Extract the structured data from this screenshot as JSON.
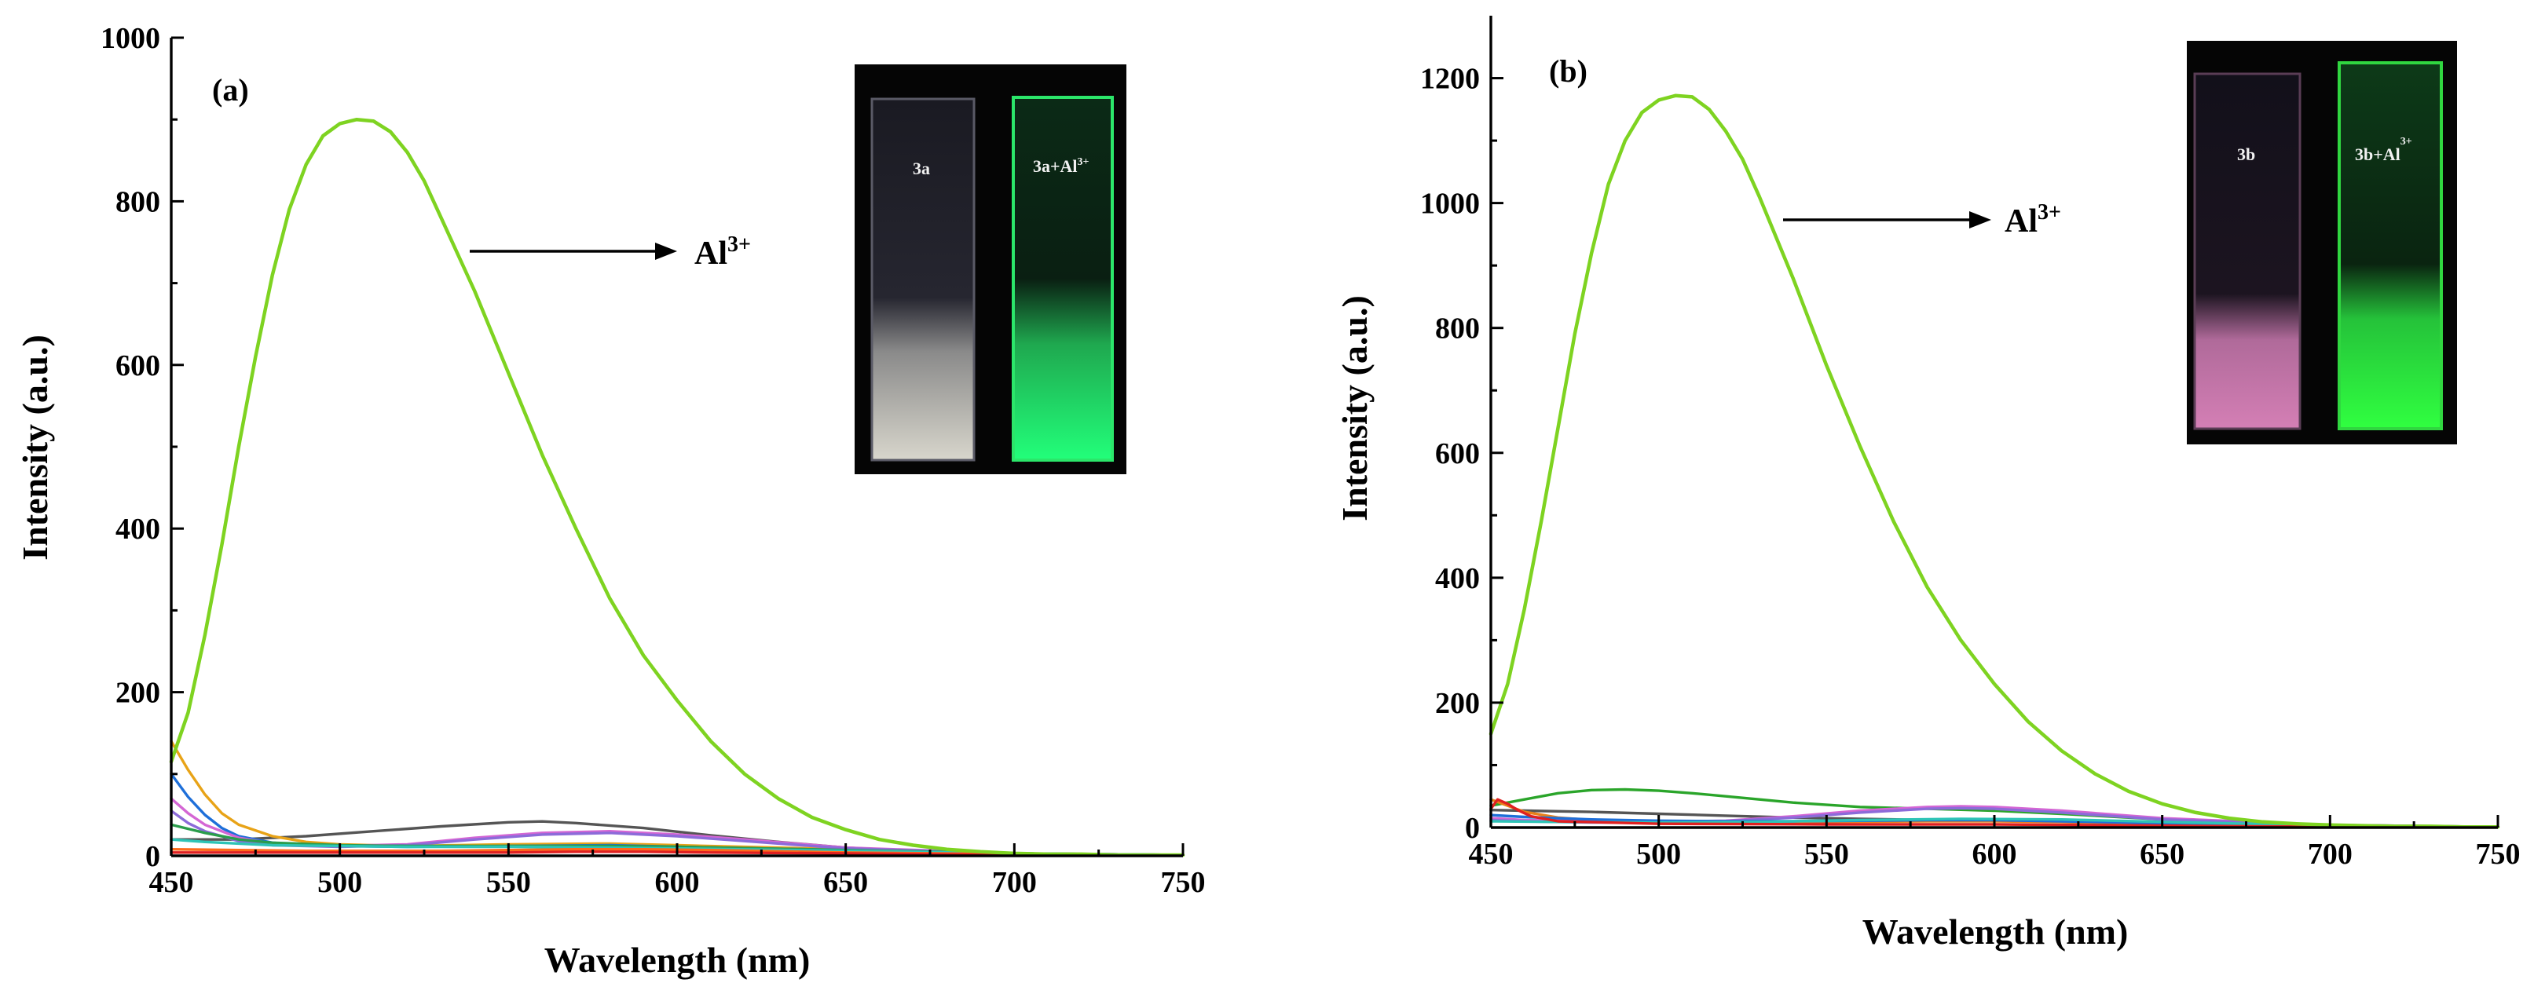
{
  "chart_data": [
    {
      "type": "line",
      "panel_label": "(a)",
      "xlabel": "Wavelength (nm)",
      "ylabel": "Intensity (a.u.)",
      "xlim": [
        450,
        750
      ],
      "ylim": [
        0,
        1000
      ],
      "xticks": [
        450,
        500,
        550,
        600,
        650,
        700,
        750
      ],
      "yticks": [
        0,
        200,
        400,
        600,
        800,
        1000
      ],
      "annotation": {
        "text": "Al",
        "sup": "3+"
      },
      "inset": {
        "left_label": "3a",
        "right_label": "3a+Al",
        "right_sup": "3+"
      },
      "series": [
        {
          "name": "Al3+",
          "color": "#7ed321",
          "x": [
            450,
            455,
            460,
            465,
            470,
            475,
            480,
            485,
            490,
            495,
            500,
            505,
            510,
            515,
            520,
            525,
            530,
            540,
            550,
            560,
            570,
            580,
            590,
            600,
            610,
            620,
            630,
            640,
            650,
            660,
            670,
            680,
            690,
            700,
            710,
            720,
            730,
            740,
            750
          ],
          "y": [
            115,
            175,
            270,
            380,
            500,
            610,
            710,
            790,
            845,
            880,
            895,
            900,
            898,
            885,
            860,
            825,
            780,
            690,
            590,
            490,
            400,
            315,
            245,
            190,
            140,
            100,
            70,
            47,
            32,
            20,
            13,
            8,
            5,
            3,
            2,
            2,
            1,
            1,
            1
          ]
        },
        {
          "name": "dark-gray",
          "color": "#555555",
          "x": [
            450,
            470,
            490,
            510,
            530,
            550,
            560,
            570,
            590,
            610,
            630,
            650,
            670,
            700,
            750
          ],
          "y": [
            20,
            20,
            24,
            30,
            36,
            41,
            42,
            40,
            34,
            25,
            17,
            10,
            6,
            3,
            1
          ]
        },
        {
          "name": "orange",
          "color": "#e8a317",
          "x": [
            450,
            455,
            460,
            465,
            470,
            480,
            490,
            500,
            520,
            550,
            580,
            600,
            650,
            700,
            750
          ],
          "y": [
            140,
            105,
            75,
            52,
            38,
            24,
            17,
            14,
            12,
            14,
            15,
            13,
            8,
            3,
            1
          ]
        },
        {
          "name": "blue",
          "color": "#1e6fd9",
          "x": [
            450,
            455,
            460,
            465,
            470,
            480,
            490,
            500,
            520,
            550,
            580,
            600,
            650,
            700,
            750
          ],
          "y": [
            100,
            72,
            50,
            34,
            24,
            16,
            13,
            12,
            11,
            12,
            13,
            11,
            7,
            3,
            1
          ]
        },
        {
          "name": "magenta",
          "color": "#d466d4",
          "x": [
            450,
            455,
            460,
            470,
            480,
            500,
            520,
            540,
            560,
            580,
            600,
            620,
            650,
            700,
            750
          ],
          "y": [
            70,
            52,
            38,
            22,
            15,
            12,
            14,
            22,
            28,
            30,
            26,
            20,
            10,
            3,
            1
          ]
        },
        {
          "name": "purple",
          "color": "#8c6bd9",
          "x": [
            450,
            455,
            460,
            470,
            480,
            500,
            520,
            540,
            560,
            580,
            600,
            620,
            650,
            700,
            750
          ],
          "y": [
            55,
            40,
            30,
            18,
            13,
            11,
            13,
            20,
            26,
            28,
            24,
            18,
            9,
            3,
            1
          ]
        },
        {
          "name": "green",
          "color": "#2a9d4b",
          "x": [
            450,
            460,
            470,
            480,
            500,
            520,
            550,
            580,
            600,
            650,
            700,
            750
          ],
          "y": [
            38,
            28,
            20,
            16,
            13,
            12,
            12,
            12,
            11,
            7,
            3,
            1
          ]
        },
        {
          "name": "teal",
          "color": "#2ec4b6",
          "x": [
            450,
            460,
            470,
            480,
            500,
            520,
            550,
            580,
            600,
            650,
            700,
            750
          ],
          "y": [
            20,
            17,
            15,
            13,
            12,
            11,
            11,
            10,
            9,
            6,
            3,
            1
          ]
        },
        {
          "name": "red-orange",
          "color": "#ff6b1a",
          "x": [
            450,
            470,
            490,
            510,
            530,
            550,
            570,
            590,
            610,
            650,
            700,
            750
          ],
          "y": [
            8,
            7,
            6,
            6,
            6,
            7,
            8,
            8,
            7,
            4,
            2,
            1
          ]
        },
        {
          "name": "red",
          "color": "#e02020",
          "x": [
            450,
            470,
            490,
            510,
            530,
            550,
            570,
            590,
            610,
            650,
            700,
            750
          ],
          "y": [
            4,
            4,
            4,
            4,
            4,
            4,
            5,
            5,
            4,
            3,
            1,
            1
          ]
        }
      ]
    },
    {
      "type": "line",
      "panel_label": "(b)",
      "xlabel": "Wavelength (nm)",
      "ylabel": "Intensity (a.u.)",
      "xlim": [
        450,
        750
      ],
      "ylim": [
        0,
        1300
      ],
      "xticks": [
        450,
        500,
        550,
        600,
        650,
        700,
        750
      ],
      "yticks": [
        0,
        200,
        400,
        600,
        800,
        1000,
        1200
      ],
      "annotation": {
        "text": "Al",
        "sup": "3+"
      },
      "inset": {
        "left_label": "3b",
        "right_label": "3b+Al",
        "right_sup": "3+"
      },
      "series": [
        {
          "name": "Al3+",
          "color": "#7ed321",
          "x": [
            450,
            455,
            460,
            465,
            470,
            475,
            480,
            485,
            490,
            495,
            500,
            505,
            510,
            515,
            520,
            525,
            530,
            540,
            550,
            560,
            570,
            580,
            590,
            600,
            610,
            620,
            630,
            640,
            650,
            660,
            670,
            680,
            690,
            700,
            710,
            720,
            730,
            740,
            750
          ],
          "y": [
            150,
            230,
            350,
            490,
            640,
            790,
            920,
            1030,
            1100,
            1145,
            1165,
            1172,
            1170,
            1150,
            1115,
            1070,
            1010,
            880,
            740,
            610,
            490,
            385,
            300,
            230,
            170,
            123,
            86,
            58,
            38,
            24,
            15,
            9,
            6,
            4,
            3,
            2,
            2,
            1,
            1
          ]
        },
        {
          "name": "green",
          "color": "#2aa52a",
          "x": [
            450,
            460,
            470,
            480,
            490,
            500,
            510,
            520,
            540,
            560,
            580,
            600,
            620,
            650,
            700,
            750
          ],
          "y": [
            35,
            45,
            55,
            60,
            61,
            59,
            55,
            50,
            40,
            33,
            30,
            27,
            22,
            13,
            4,
            1
          ]
        },
        {
          "name": "dark-gray",
          "color": "#555555",
          "x": [
            450,
            460,
            480,
            500,
            520,
            540,
            560,
            580,
            600,
            620,
            650,
            700,
            750
          ],
          "y": [
            28,
            27,
            25,
            22,
            19,
            16,
            14,
            12,
            11,
            9,
            6,
            3,
            1
          ]
        },
        {
          "name": "orange",
          "color": "#e8801a",
          "x": [
            450,
            455,
            460,
            470,
            480,
            500,
            520,
            550,
            580,
            600,
            650,
            700,
            750
          ],
          "y": [
            45,
            35,
            25,
            16,
            12,
            10,
            9,
            9,
            10,
            10,
            7,
            3,
            1
          ]
        },
        {
          "name": "magenta",
          "color": "#d466d4",
          "x": [
            450,
            460,
            480,
            500,
            520,
            540,
            560,
            580,
            590,
            600,
            620,
            650,
            700,
            750
          ],
          "y": [
            15,
            12,
            10,
            9,
            11,
            18,
            27,
            33,
            34,
            33,
            27,
            15,
            4,
            1
          ]
        },
        {
          "name": "purple",
          "color": "#8c6bd9",
          "x": [
            450,
            460,
            480,
            500,
            520,
            540,
            560,
            580,
            590,
            600,
            620,
            650,
            700,
            750
          ],
          "y": [
            12,
            10,
            8,
            8,
            10,
            16,
            24,
            30,
            31,
            30,
            24,
            13,
            4,
            1
          ]
        },
        {
          "name": "blue",
          "color": "#1e6fd9",
          "x": [
            450,
            460,
            480,
            500,
            520,
            540,
            560,
            580,
            600,
            620,
            650,
            700,
            750
          ],
          "y": [
            20,
            17,
            13,
            11,
            10,
            10,
            11,
            12,
            12,
            10,
            7,
            3,
            1
          ]
        },
        {
          "name": "teal",
          "color": "#2ec4b6",
          "x": [
            450,
            470,
            500,
            530,
            560,
            590,
            620,
            650,
            700,
            750
          ],
          "y": [
            10,
            9,
            8,
            9,
            12,
            14,
            13,
            9,
            3,
            1
          ]
        },
        {
          "name": "red",
          "color": "#e02020",
          "x": [
            450,
            452,
            455,
            458,
            462,
            470,
            500,
            550,
            600,
            650,
            700,
            750
          ],
          "y": [
            30,
            45,
            38,
            28,
            18,
            10,
            6,
            5,
            5,
            3,
            1,
            1
          ]
        }
      ]
    }
  ]
}
